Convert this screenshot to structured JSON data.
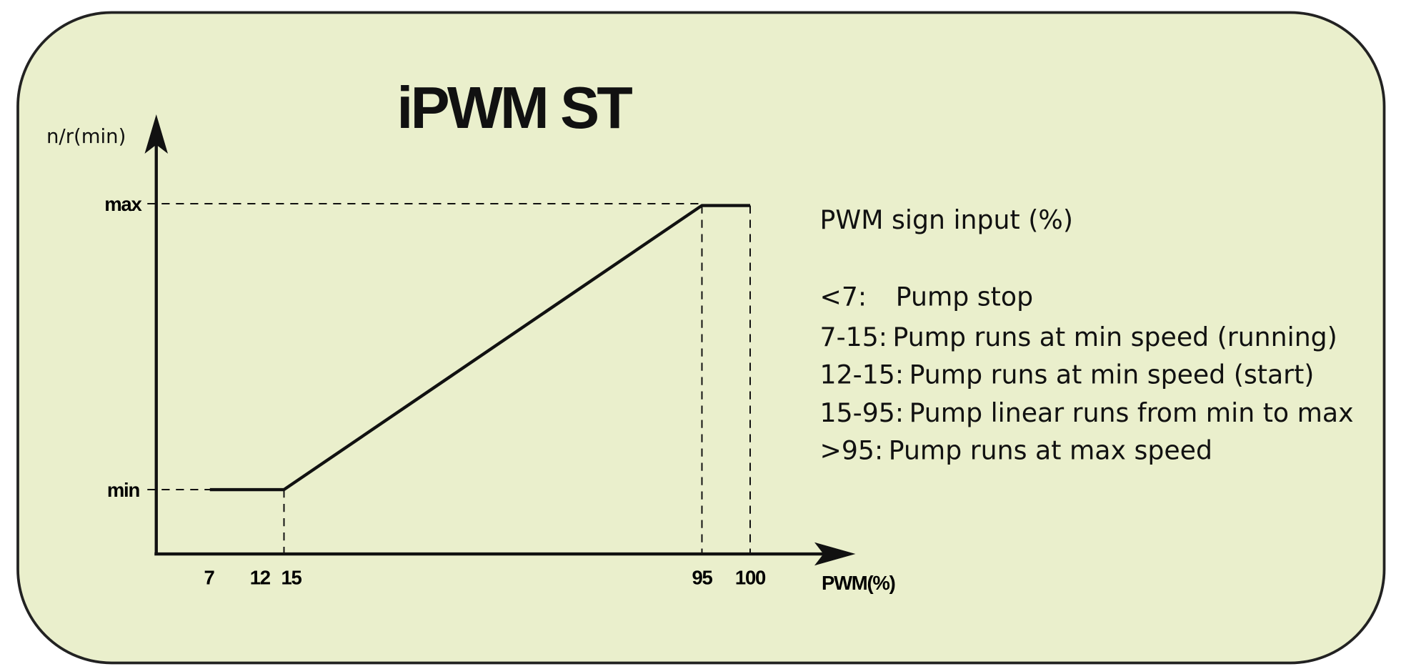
{
  "title": "iPWM ST",
  "y_axis_label": "n/r(min)",
  "x_axis_label": "PWM(%)",
  "y_ticks": [
    "max",
    "min"
  ],
  "x_ticks": [
    "7",
    "12",
    "15",
    "95",
    "100"
  ],
  "legend": {
    "heading": "PWM sign input (%)",
    "items": [
      {
        "range": "<7:",
        "text": "Pump stop"
      },
      {
        "range": "7-15:",
        "text": "Pump runs at min speed (running)"
      },
      {
        "range": "12-15:",
        "text": "Pump runs at min speed (start)"
      },
      {
        "range": "15-95:",
        "text": "Pump linear runs from min to max"
      },
      {
        "range": ">95:",
        "text": "Pump runs at max speed"
      }
    ]
  }
}
